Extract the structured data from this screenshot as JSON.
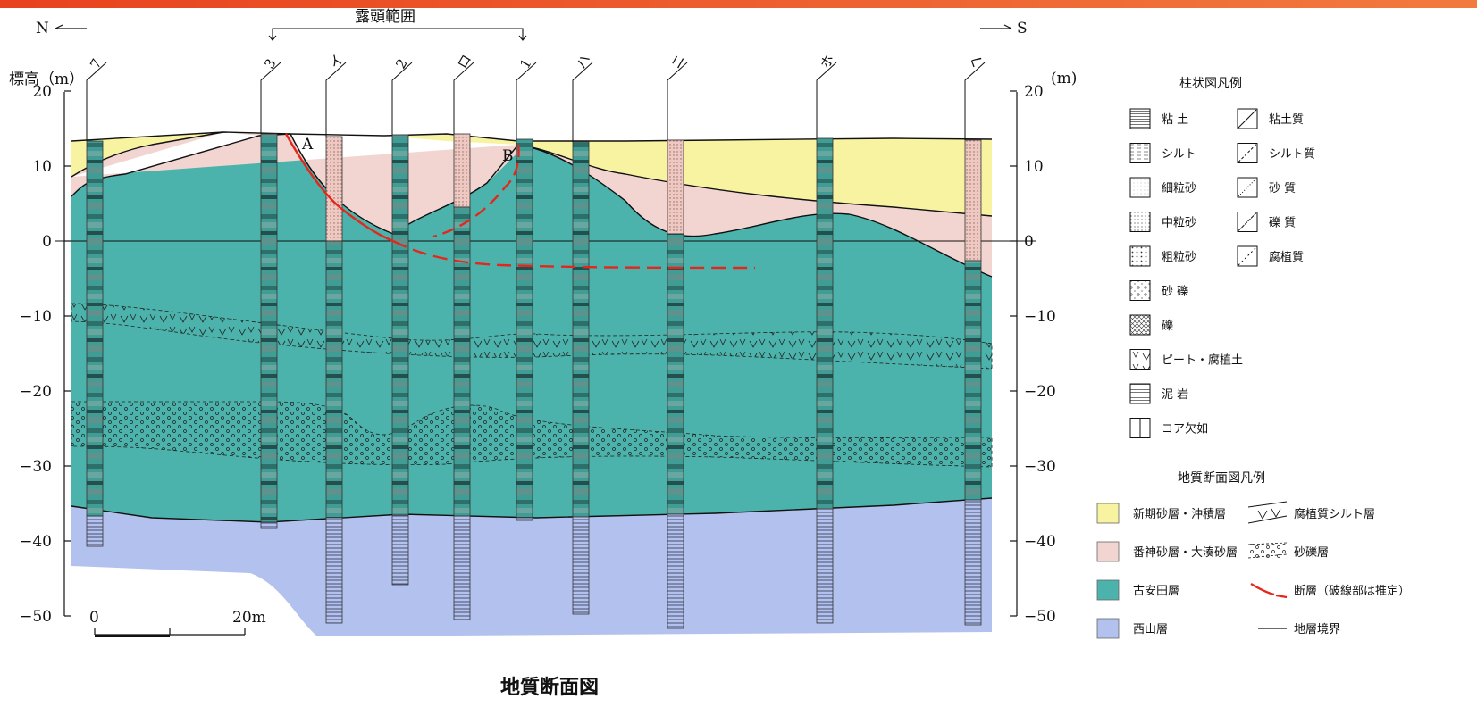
{
  "caption": "地質断面図",
  "outcrop_label": "露頭範囲",
  "dir_north": "N",
  "dir_south": "S",
  "y_axis_left_label": "標高（m）",
  "y_axis_right_label": "(m)",
  "y_ticks": [
    20,
    10,
    0,
    -10,
    -20,
    -30,
    -40,
    -50
  ],
  "scale": {
    "start": "0",
    "end": "20m"
  },
  "fault_labels": {
    "a": "A",
    "b": "B"
  },
  "boreholes": [
    "7",
    "3",
    "イ",
    "2",
    "ロ",
    "1",
    "ハ",
    "ニ",
    "ホ",
    "ヘ"
  ],
  "columnar_legend": {
    "title": "柱状図凡例",
    "left": [
      "粘 土",
      "シルト",
      "細粒砂",
      "中粒砂",
      "粗粒砂",
      "砂 礫",
      "礫",
      "ピート・腐植土",
      "泥 岩",
      "コア欠如"
    ],
    "right": [
      "粘土質",
      "シルト質",
      "砂 質",
      "礫 質",
      "腐植質"
    ]
  },
  "section_legend": {
    "title": "地質断面図凡例",
    "left": [
      "新期砂層・沖積層",
      "番神砂層・大湊砂層",
      "古安田層",
      "西山層"
    ],
    "right": [
      "腐植質シルト層",
      "砂礫層",
      "断層（破線部は推定）",
      "地層境界"
    ]
  },
  "colors": {
    "new_sand": "#f7f3a1",
    "banjin_sand": "#f2d5d0",
    "yasuda": "#4bb3ab",
    "nishiyama": "#b3c1ee",
    "fault": "#e4271c",
    "topbar": "#e8421e"
  }
}
